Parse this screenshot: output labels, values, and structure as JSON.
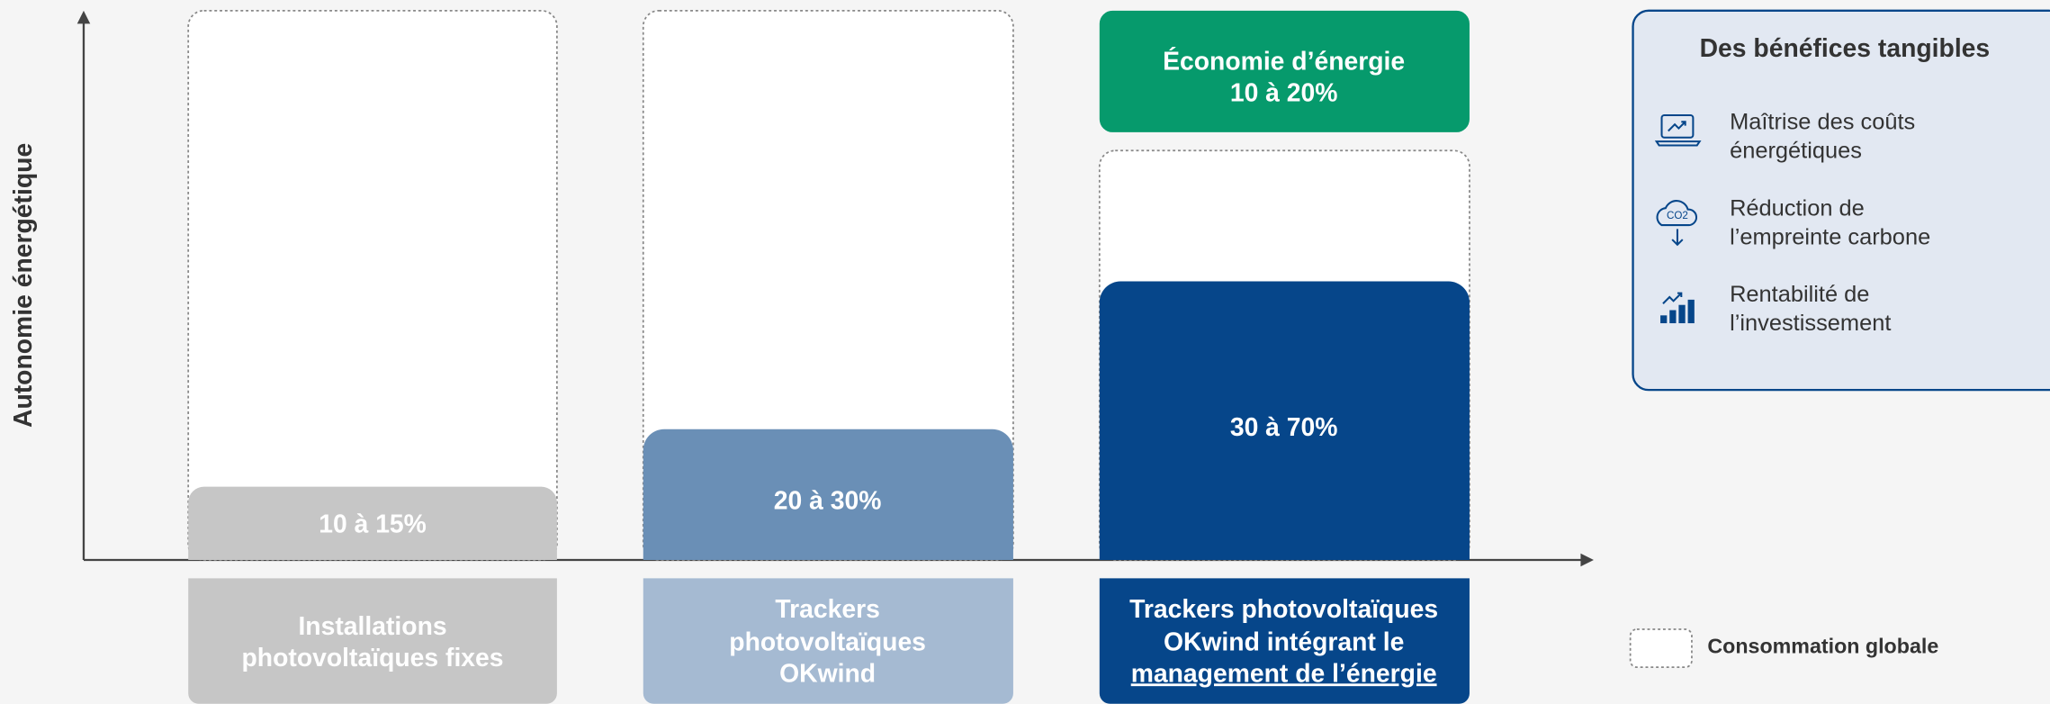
{
  "axis_label": "Autonomie énergétique",
  "columns": [
    {
      "value_label": "10 à 15%",
      "label_lines": [
        "Installations",
        "photovoltaïques fixes"
      ]
    },
    {
      "value_label": "20 à 30%",
      "label_lines": [
        "Trackers",
        "photovoltaïques",
        "OKwind"
      ]
    },
    {
      "value_label": "30 à 70%",
      "label_lines": [
        "Trackers photovoltaïques",
        "OKwind intégrant le",
        "management de l’énergie"
      ]
    }
  ],
  "savings": {
    "title": "Économie d’énergie",
    "value_label": "10 à 20%"
  },
  "benefits": {
    "title": "Des bénéfices tangibles",
    "items": [
      {
        "lines": [
          "Maîtrise des coûts",
          "énergétiques"
        ]
      },
      {
        "lines": [
          "Réduction de",
          "l’empreinte carbone"
        ]
      },
      {
        "lines": [
          "Rentabilité de",
          "l’investissement"
        ]
      }
    ]
  },
  "legend": "Consommation globale"
}
